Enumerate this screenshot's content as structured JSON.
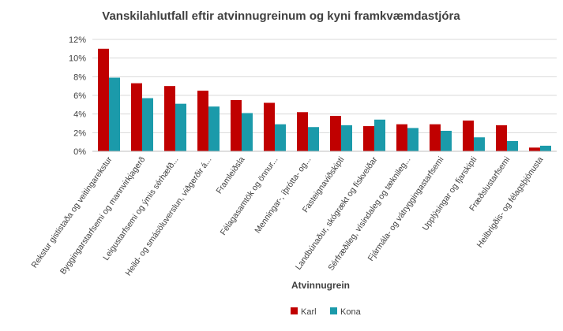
{
  "chart_data": {
    "type": "bar",
    "title": "Vanskilahlutfall eftir atvinnugreinum og kyni framkvæmdastjóra",
    "xlabel": "Atvinnugrein",
    "ylabel": "",
    "ylim": [
      0,
      12
    ],
    "yticks": [
      0,
      2,
      4,
      6,
      8,
      10,
      12
    ],
    "ytick_labels": [
      "0%",
      "2%",
      "4%",
      "6%",
      "8%",
      "10%",
      "12%"
    ],
    "grid": true,
    "legend_position": "bottom",
    "categories": [
      "Rekstur gististaða og veitingarekstur",
      "Byggingarstarfsemi og mannvirkjagerð",
      "Leigustarfsemi og ýmis sérhæfð...",
      "Heild- og smásöluverslun, viðgerðir á...",
      "Framleiðsla",
      "Félagasamtök og önnur...",
      "Menningar-, íþrótta- og...",
      "Fasteignaviðskipti",
      "Landbúnaður, skógrækt og fiskveiðar",
      "Sérfræðileg, vísindaleg og tæknileg...",
      "Fjármála- og vátryggingastarfsemi",
      "Upplýsingar og fjarskipti",
      "Fræðslustarfsemi",
      "Heilbrigðis- og félagsþjónusta"
    ],
    "series": [
      {
        "name": "Karl",
        "color": "#C00000",
        "values": [
          11.0,
          7.3,
          7.0,
          6.5,
          5.5,
          5.2,
          4.2,
          3.8,
          2.7,
          2.9,
          2.9,
          3.3,
          2.8,
          0.4
        ]
      },
      {
        "name": "Kona",
        "color": "#1B9AAA",
        "values": [
          7.9,
          5.7,
          5.1,
          4.8,
          4.1,
          2.9,
          2.6,
          2.8,
          3.4,
          2.5,
          2.2,
          1.5,
          1.1,
          0.6
        ]
      }
    ]
  }
}
